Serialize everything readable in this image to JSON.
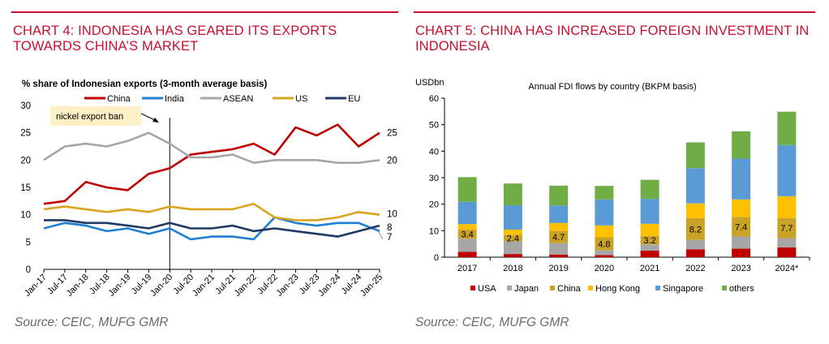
{
  "left": {
    "title": "CHART 4: INDONESIA HAS GEARED ITS EXPORTS TOWARDS CHINA’S MARKET",
    "source": "Source: CEIC, MUFG GMR",
    "annotation": "nickel export ban",
    "end_labels": {
      "china": "25",
      "asean": "20",
      "us": "10",
      "eu": "8",
      "india": "7"
    }
  },
  "right": {
    "title": "CHART 5: CHINA HAS INCREASED FOREIGN INVESTMENT IN INDONESIA",
    "source": "Source: CEIC, MUFG GMR"
  },
  "chart_data": [
    {
      "type": "line",
      "title": "% share of Indonesian exports (3-month average basis)",
      "xlabel": "",
      "ylabel": "",
      "ylim": [
        0,
        30
      ],
      "yticks": [
        "0",
        "5",
        "10",
        "15",
        "20",
        "25",
        "30"
      ],
      "xticks": [
        "Jan-17",
        "Jul-17",
        "Jan-18",
        "Jul-18",
        "Jan-19",
        "Jul-19",
        "Jan-20",
        "Jul-20",
        "Jan-21",
        "Jul-21",
        "Jan-22",
        "Jul-22",
        "Jan-23",
        "Jul-23",
        "Jan-24",
        "Jul-24",
        "Jan-25"
      ],
      "legend_position": "top",
      "grid": false,
      "vline_at": "Jan-20",
      "series": [
        {
          "name": "China",
          "color": "#c00000",
          "x": [
            "Jan-17",
            "Jul-17",
            "Jan-18",
            "Jul-18",
            "Jan-19",
            "Jul-19",
            "Jan-20",
            "Jul-20",
            "Jan-21",
            "Jul-21",
            "Jan-22",
            "Jul-22",
            "Jan-23",
            "Jul-23",
            "Jan-24",
            "Jul-24",
            "Jan-25"
          ],
          "values": [
            12,
            12.5,
            16,
            15,
            14.5,
            17.5,
            18.5,
            21,
            21.5,
            22,
            23,
            21,
            26,
            24.5,
            26.5,
            22.5,
            25
          ]
        },
        {
          "name": "India",
          "color": "#1f7fd1",
          "x": [
            "Jan-17",
            "Jul-17",
            "Jan-18",
            "Jul-18",
            "Jan-19",
            "Jul-19",
            "Jan-20",
            "Jul-20",
            "Jan-21",
            "Jul-21",
            "Jan-22",
            "Jul-22",
            "Jan-23",
            "Jul-23",
            "Jan-24",
            "Jul-24",
            "Jan-25"
          ],
          "values": [
            7.5,
            8.5,
            8,
            7,
            7.5,
            6.5,
            7.5,
            5.5,
            6,
            6,
            5.5,
            9.5,
            8.5,
            8,
            8.5,
            8.5,
            7
          ]
        },
        {
          "name": "ASEAN",
          "color": "#a6a6a6",
          "x": [
            "Jan-17",
            "Jul-17",
            "Jan-18",
            "Jul-18",
            "Jan-19",
            "Jul-19",
            "Jan-20",
            "Jul-20",
            "Jan-21",
            "Jul-21",
            "Jan-22",
            "Jul-22",
            "Jan-23",
            "Jul-23",
            "Jan-24",
            "Jul-24",
            "Jan-25"
          ],
          "values": [
            20,
            22.5,
            23,
            22.5,
            23.5,
            25,
            23,
            20.5,
            20.5,
            21,
            19.5,
            20,
            20,
            20,
            19.5,
            19.5,
            20
          ]
        },
        {
          "name": "US",
          "color": "#d9a520",
          "x": [
            "Jan-17",
            "Jul-17",
            "Jan-18",
            "Jul-18",
            "Jan-19",
            "Jul-19",
            "Jan-20",
            "Jul-20",
            "Jan-21",
            "Jul-21",
            "Jan-22",
            "Jul-22",
            "Jan-23",
            "Jul-23",
            "Jan-24",
            "Jul-24",
            "Jan-25"
          ],
          "values": [
            11,
            11.5,
            11,
            10.5,
            11,
            10.5,
            11.5,
            11,
            11,
            11,
            12,
            9.5,
            9,
            9,
            9.5,
            10.5,
            10
          ]
        },
        {
          "name": "EU",
          "color": "#1f3864",
          "x": [
            "Jan-17",
            "Jul-17",
            "Jan-18",
            "Jul-18",
            "Jan-19",
            "Jul-19",
            "Jan-20",
            "Jul-20",
            "Jan-21",
            "Jul-21",
            "Jan-22",
            "Jul-22",
            "Jan-23",
            "Jul-23",
            "Jan-24",
            "Jul-24",
            "Jan-25"
          ],
          "values": [
            9,
            9,
            8.5,
            8.5,
            8,
            7.5,
            8.5,
            7.5,
            7.5,
            8,
            7,
            7.5,
            7,
            6.5,
            6,
            7,
            8
          ]
        }
      ]
    },
    {
      "type": "bar",
      "stacked": true,
      "title": "Annual FDI flows by country (BKPM basis)",
      "ylabel": "USDbn",
      "xlabel": "",
      "ylim": [
        0,
        60
      ],
      "yticks": [
        "0",
        "10",
        "20",
        "30",
        "40",
        "50",
        "60"
      ],
      "categories": [
        "2017",
        "2018",
        "2019",
        "2020",
        "2021",
        "2022",
        "2023",
        "2024*"
      ],
      "legend_position": "bottom",
      "grid": false,
      "series": [
        {
          "name": "USA",
          "color": "#c00000",
          "values": [
            2,
            1.2,
            1,
            0.8,
            2.5,
            3,
            3.2,
            3.7
          ]
        },
        {
          "name": "Japan",
          "color": "#a6a6a6",
          "values": [
            5,
            4.8,
            4.3,
            1.9,
            2.3,
            3.5,
            4.6,
            3.4
          ]
        },
        {
          "name": "China",
          "color": "#c9a227",
          "values": [
            3.4,
            2.4,
            4.7,
            4.8,
            3.2,
            8.2,
            7.4,
            7.7
          ]
        },
        {
          "name": "Hong Kong",
          "color": "#ffc000",
          "values": [
            2.1,
            2,
            2.9,
            4.5,
            4.6,
            5.6,
            6.6,
            8.2
          ]
        },
        {
          "name": "Singapore",
          "color": "#5b9bd5",
          "values": [
            8.4,
            9.2,
            6.6,
            9.8,
            9.4,
            13.3,
            15.4,
            19.3
          ]
        },
        {
          "name": "others",
          "color": "#70ad47",
          "values": [
            9.3,
            8.2,
            7.5,
            5.1,
            7.2,
            9.7,
            10.3,
            12.6
          ]
        }
      ],
      "data_labels_series": "China"
    }
  ]
}
